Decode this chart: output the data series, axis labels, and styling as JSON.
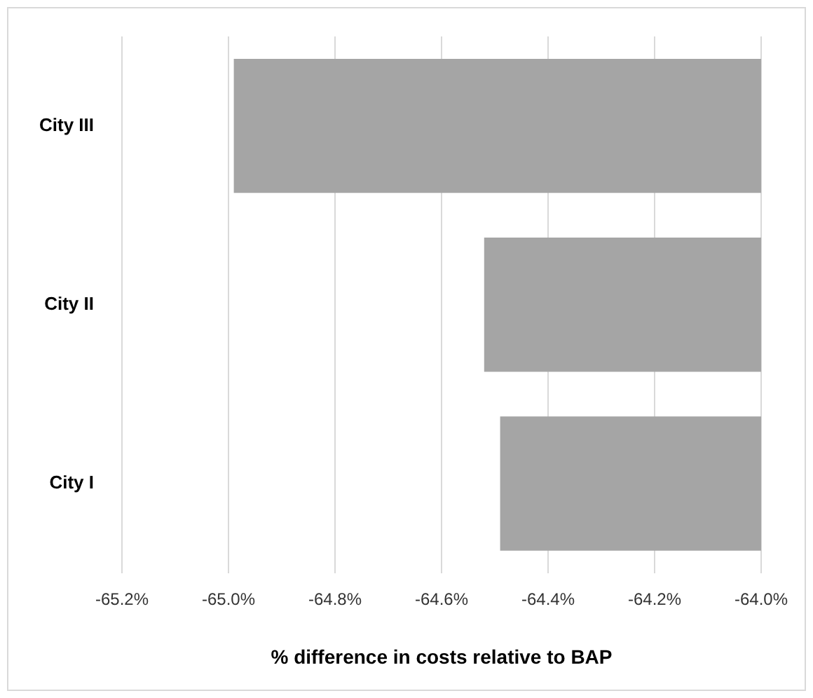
{
  "chart_data": {
    "type": "bar",
    "orientation": "horizontal",
    "categories": [
      "City III",
      "City II",
      "City I"
    ],
    "values": [
      -64.99,
      -64.52,
      -64.49
    ],
    "color": "#a5a5a5",
    "xlabel": "% difference in costs relative to BAP",
    "xlim": [
      -65.2,
      -64.0
    ],
    "xticks": [
      {
        "value": -65.2,
        "label": "-65.2%"
      },
      {
        "value": -65.0,
        "label": "-65.0%"
      },
      {
        "value": -64.8,
        "label": "-64.8%"
      },
      {
        "value": -64.6,
        "label": "-64.6%"
      },
      {
        "value": -64.4,
        "label": "-64.4%"
      },
      {
        "value": -64.2,
        "label": "-64.2%"
      },
      {
        "value": -64.0,
        "label": "-64.0%"
      }
    ],
    "grid": "x",
    "legend": false
  }
}
